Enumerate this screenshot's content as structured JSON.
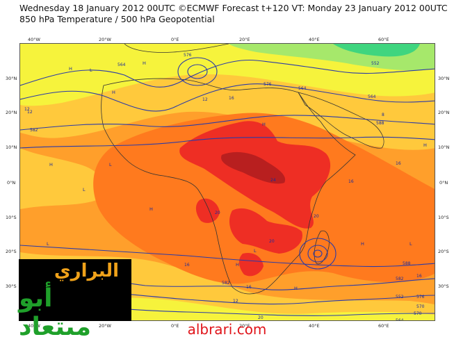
{
  "header": {
    "line1": "Wednesday 18 January 2012 00UTC ©ECMWF Forecast t+120 VT: Monday 23 January 2012 00UTC",
    "line2": "850 hPa Temperature / 500 hPa Geopotential"
  },
  "map": {
    "lon_labels": [
      "40°W",
      "20°W",
      "0°E",
      "20°E",
      "40°E",
      "60°E"
    ],
    "lat_labels": [
      "30°N",
      "20°N",
      "10°N",
      "0°N",
      "10°S",
      "20°S",
      "30°S"
    ],
    "colors": {
      "green": "#3fd57f",
      "light_green": "#a6e86b",
      "yellow": "#f6f33c",
      "light_orange": "#ffc93c",
      "orange": "#ff9f2b",
      "dark_orange": "#ff7a1e",
      "red": "#ee2e24",
      "dark_red": "#b81f1f",
      "contour": "#2a3aa8",
      "coast": "#333333"
    },
    "geopotential_labels": [
      "576",
      "564",
      "576",
      "564",
      "582",
      "552",
      "564",
      "588",
      "588",
      "570",
      "564",
      "552",
      "582",
      "582",
      "576",
      "570"
    ],
    "temperature_labels": [
      "12",
      "16",
      "12",
      "16",
      "24",
      "20",
      "16",
      "12",
      "20",
      "16",
      "16",
      "20",
      "12",
      "16",
      "8",
      "20"
    ],
    "pressure_centers": [
      "H",
      "L",
      "H",
      "H",
      "L",
      "H",
      "L",
      "L",
      "H",
      "H",
      "L",
      "H",
      "H",
      "L",
      "H",
      "H"
    ]
  },
  "logo": {
    "line1": "البراري",
    "line2": "أبو ميتعاد"
  },
  "footer": {
    "site": "albrari.com"
  }
}
